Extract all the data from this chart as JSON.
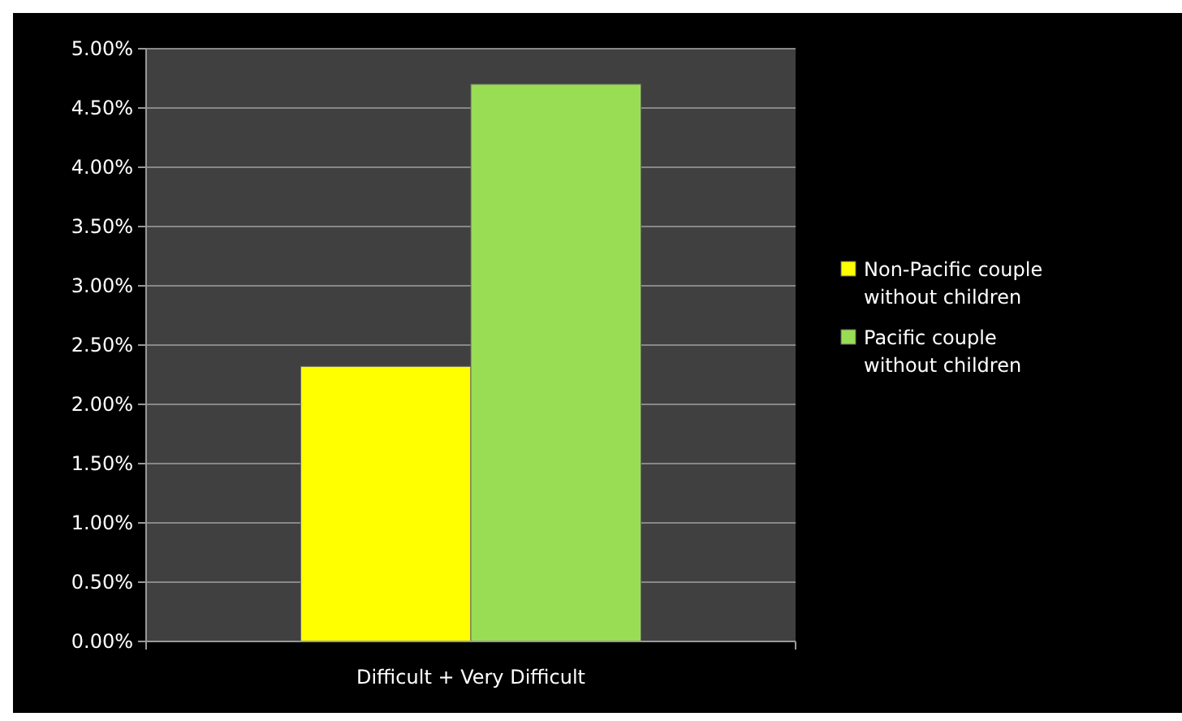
{
  "chart_data": {
    "type": "bar",
    "categories": [
      "Difficult + Very Difficult"
    ],
    "series": [
      {
        "name": "Non-Pacific couple without children",
        "color": "#ffff00",
        "values": [
          2.32
        ]
      },
      {
        "name": "Pacific couple without children",
        "color": "#99dd55",
        "values": [
          4.7
        ]
      }
    ],
    "ylim": [
      0,
      5
    ],
    "yticks": [
      {
        "value": 0,
        "label": "0.00%"
      },
      {
        "value": 0.5,
        "label": "0.50%"
      },
      {
        "value": 1,
        "label": "1.00%"
      },
      {
        "value": 1.5,
        "label": "1.50%"
      },
      {
        "value": 2,
        "label": "2.00%"
      },
      {
        "value": 2.5,
        "label": "2.50%"
      },
      {
        "value": 3,
        "label": "3.00%"
      },
      {
        "value": 3.5,
        "label": "3.50%"
      },
      {
        "value": 4,
        "label": "4.00%"
      },
      {
        "value": 4.5,
        "label": "4.50%"
      },
      {
        "value": 5,
        "label": "5.00%"
      }
    ],
    "grid": "y",
    "legend": "right"
  }
}
